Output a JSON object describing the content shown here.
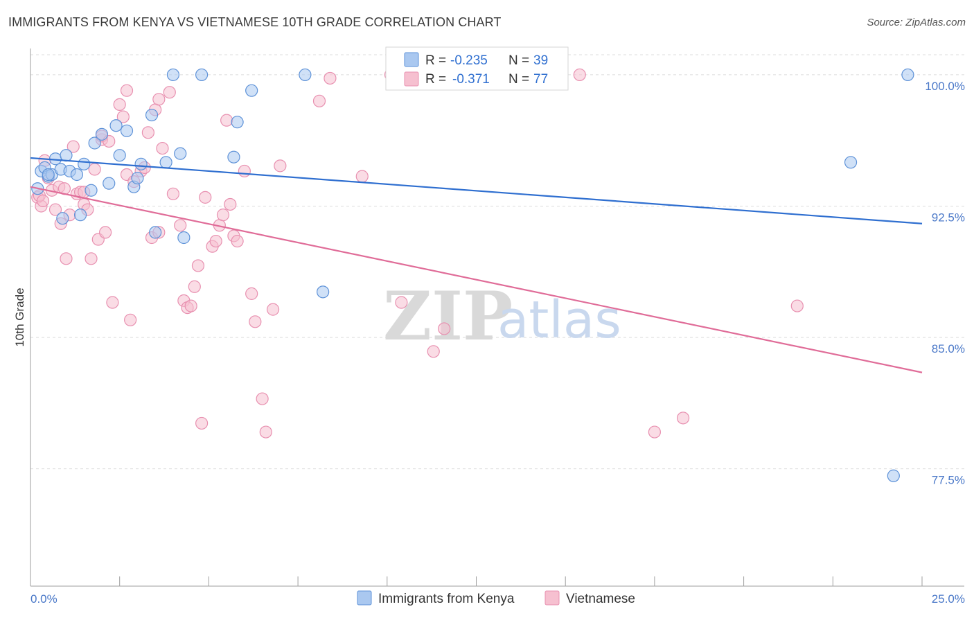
{
  "title": "IMMIGRANTS FROM KENYA VS VIETNAMESE 10TH GRADE CORRELATION CHART",
  "source": "Source: ZipAtlas.com",
  "watermark": {
    "zip": "ZIP",
    "atlas": "atlas"
  },
  "colors": {
    "blue_fill": "#aac8f0",
    "blue_stroke": "#5e92d8",
    "blue_line": "#2f6fd0",
    "pink_fill": "#f6c0d0",
    "pink_stroke": "#e890b0",
    "pink_line": "#e06c98"
  },
  "legend": {
    "rows": [
      {
        "r_label": "R =",
        "r_value": "-0.235",
        "n_label": "N =",
        "n_value": "39"
      },
      {
        "r_label": "R =",
        "r_value": "-0.371",
        "n_label": "N =",
        "n_value": "77"
      }
    ]
  },
  "chart_data": {
    "type": "scatter",
    "xlabel": "",
    "ylabel": "10th Grade",
    "xlim": [
      0,
      25
    ],
    "ylim": [
      70.8,
      101.5
    ],
    "x_tick_labels": [
      {
        "value": 0,
        "label": "0.0%"
      },
      {
        "value": 25,
        "label": "25.0%"
      }
    ],
    "y_tick_labels": [
      {
        "value": 100.0,
        "label": "100.0%"
      },
      {
        "value": 92.5,
        "label": "92.5%"
      },
      {
        "value": 85.0,
        "label": "85.0%"
      },
      {
        "value": 77.5,
        "label": "77.5%"
      }
    ],
    "grid": true,
    "legend_position": "top-center",
    "series": [
      {
        "name": "Immigrants from Kenya",
        "r": -0.235,
        "n": 39,
        "trend": [
          [
            0,
            95.25
          ],
          [
            25,
            91.5
          ]
        ],
        "points": [
          [
            0.2,
            93.5
          ],
          [
            0.3,
            94.5
          ],
          [
            0.4,
            94.7
          ],
          [
            0.5,
            94.2
          ],
          [
            0.6,
            94.3
          ],
          [
            0.7,
            95.2
          ],
          [
            0.85,
            94.6
          ],
          [
            1.0,
            95.4
          ],
          [
            1.1,
            94.5
          ],
          [
            1.3,
            94.3
          ],
          [
            1.4,
            92.0
          ],
          [
            1.5,
            94.9
          ],
          [
            1.7,
            93.4
          ],
          [
            1.8,
            96.1
          ],
          [
            2.0,
            96.6
          ],
          [
            2.2,
            93.8
          ],
          [
            2.4,
            97.1
          ],
          [
            2.5,
            95.4
          ],
          [
            2.7,
            96.8
          ],
          [
            2.9,
            93.6
          ],
          [
            3.0,
            94.1
          ],
          [
            3.1,
            94.9
          ],
          [
            3.4,
            97.7
          ],
          [
            3.5,
            91.0
          ],
          [
            3.8,
            95.0
          ],
          [
            4.0,
            100.0
          ],
          [
            4.2,
            95.5
          ],
          [
            4.3,
            90.7
          ],
          [
            4.8,
            100.0
          ],
          [
            5.7,
            95.3
          ],
          [
            5.8,
            97.3
          ],
          [
            6.2,
            99.1
          ],
          [
            7.7,
            100.0
          ],
          [
            8.2,
            87.6
          ],
          [
            23.0,
            95.0
          ],
          [
            24.6,
            100.0
          ],
          [
            24.2,
            77.1
          ],
          [
            0.9,
            91.8
          ],
          [
            0.5,
            94.3
          ]
        ]
      },
      {
        "name": "Vietnamese",
        "r": -0.371,
        "n": 77,
        "trend": [
          [
            0,
            93.6
          ],
          [
            25,
            83.0
          ]
        ],
        "points": [
          [
            0.2,
            93.0
          ],
          [
            0.3,
            92.5
          ],
          [
            0.4,
            95.1
          ],
          [
            0.5,
            94.1
          ],
          [
            0.6,
            93.4
          ],
          [
            0.7,
            92.3
          ],
          [
            0.8,
            93.6
          ],
          [
            0.85,
            91.5
          ],
          [
            0.95,
            93.5
          ],
          [
            1.0,
            89.5
          ],
          [
            1.1,
            92.0
          ],
          [
            1.2,
            95.9
          ],
          [
            1.3,
            93.2
          ],
          [
            1.4,
            93.3
          ],
          [
            1.5,
            93.3
          ],
          [
            1.5,
            92.6
          ],
          [
            1.6,
            92.3
          ],
          [
            1.7,
            89.5
          ],
          [
            1.8,
            94.6
          ],
          [
            1.9,
            90.6
          ],
          [
            2.0,
            96.3
          ],
          [
            2.0,
            96.5
          ],
          [
            2.1,
            91.0
          ],
          [
            2.2,
            96.2
          ],
          [
            2.3,
            87.0
          ],
          [
            2.5,
            98.3
          ],
          [
            2.6,
            97.6
          ],
          [
            2.7,
            94.3
          ],
          [
            2.7,
            99.1
          ],
          [
            2.8,
            86.0
          ],
          [
            2.9,
            93.9
          ],
          [
            3.1,
            94.5
          ],
          [
            3.2,
            94.7
          ],
          [
            3.3,
            96.7
          ],
          [
            3.4,
            90.7
          ],
          [
            3.5,
            98.0
          ],
          [
            3.6,
            98.6
          ],
          [
            3.6,
            91.0
          ],
          [
            3.7,
            95.8
          ],
          [
            3.9,
            99.0
          ],
          [
            4.0,
            93.2
          ],
          [
            4.2,
            91.4
          ],
          [
            4.3,
            87.1
          ],
          [
            4.4,
            86.7
          ],
          [
            4.5,
            86.8
          ],
          [
            4.6,
            87.9
          ],
          [
            4.7,
            89.1
          ],
          [
            4.8,
            80.1
          ],
          [
            4.9,
            93.0
          ],
          [
            5.1,
            90.2
          ],
          [
            5.2,
            90.5
          ],
          [
            5.3,
            91.4
          ],
          [
            5.4,
            92.0
          ],
          [
            5.5,
            97.4
          ],
          [
            5.6,
            92.6
          ],
          [
            5.7,
            90.8
          ],
          [
            5.8,
            90.5
          ],
          [
            6.0,
            94.5
          ],
          [
            6.2,
            87.5
          ],
          [
            6.3,
            85.9
          ],
          [
            6.5,
            81.5
          ],
          [
            6.6,
            79.6
          ],
          [
            6.8,
            86.6
          ],
          [
            7.0,
            94.8
          ],
          [
            8.1,
            98.5
          ],
          [
            8.4,
            99.8
          ],
          [
            9.3,
            94.2
          ],
          [
            10.1,
            100.0
          ],
          [
            10.4,
            87.0
          ],
          [
            11.3,
            84.2
          ],
          [
            11.6,
            85.5
          ],
          [
            15.4,
            100.0
          ],
          [
            17.5,
            79.6
          ],
          [
            18.3,
            80.4
          ],
          [
            21.5,
            86.8
          ],
          [
            0.25,
            93.1
          ],
          [
            0.35,
            92.8
          ]
        ]
      }
    ]
  }
}
